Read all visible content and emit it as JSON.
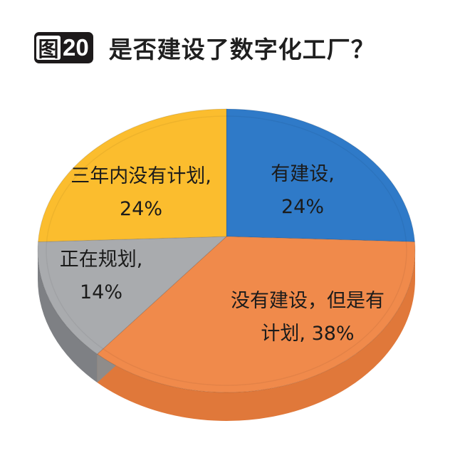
{
  "header": {
    "figure_prefix": "图",
    "figure_number": "20",
    "title": "是否建设了数字化工厂？"
  },
  "chart_data": {
    "type": "pie",
    "title": "是否建设了数字化工厂？",
    "figure_label": "图20",
    "style": "3d",
    "categories": [
      "有建设",
      "没有建设，但是有计划",
      "正在规划",
      "三年内没有计划"
    ],
    "values": [
      24,
      38,
      14,
      24
    ],
    "unit": "%",
    "colors": [
      "#2f7ac8",
      "#f08a4b",
      "#a9abae",
      "#fbbd2e"
    ],
    "side_colors": [
      "#1f5fa3",
      "#e0783a",
      "#7e8084",
      "#d9a020"
    ],
    "data_labels": [
      {
        "line1": "有建设,",
        "line2": "24%"
      },
      {
        "line1": "没有建设，但是有",
        "line2": "计划, 38%"
      },
      {
        "line1": "正在规划,",
        "line2": "14%"
      },
      {
        "line1": "三年内没有计划,",
        "line2": "24%"
      }
    ],
    "legend": "none"
  }
}
